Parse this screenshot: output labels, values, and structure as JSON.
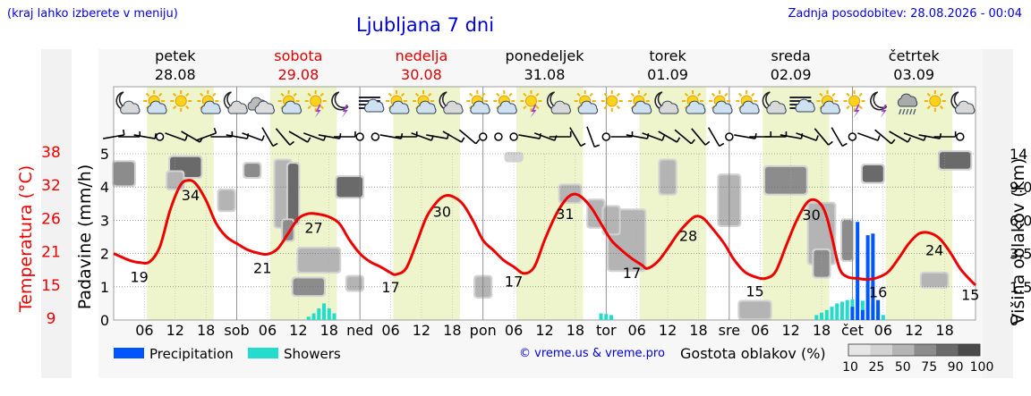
{
  "header": {
    "hint": "(kraj lahko izberete v meniju)",
    "title": "Ljubljana 7 dni",
    "updated": "Zadnja posodobitev: 28.08.2026 - 00:04"
  },
  "footer": {
    "copyright": "© vreme.us & vreme.pro",
    "density_label": "Gostota oblakov (%)",
    "density_ticks": [
      "10",
      "25",
      "50",
      "75",
      "90",
      "100"
    ]
  },
  "colors": {
    "temperature": "#ee0000",
    "precipitation": "#0055ff",
    "showers": "#22ddcc",
    "daylight": "#eef5cc",
    "night": "#ffffff",
    "weekend_label": "#dd0000",
    "link_blue": "#0000dd"
  },
  "chart_data": {
    "type": "line",
    "days": [
      {
        "name": "petek",
        "date": "28.08",
        "short": "",
        "weekend": false
      },
      {
        "name": "sobota",
        "date": "29.08",
        "short": "sob",
        "weekend": true
      },
      {
        "name": "nedelja",
        "date": "30.08",
        "short": "ned",
        "weekend": true
      },
      {
        "name": "ponedeljek",
        "date": "31.08",
        "short": "pon",
        "weekend": false
      },
      {
        "name": "torek",
        "date": "01.09",
        "short": "tor",
        "weekend": false
      },
      {
        "name": "sreda",
        "date": "02.09",
        "short": "sre",
        "weekend": false
      },
      {
        "name": "četrtek",
        "date": "03.09",
        "short": "čet",
        "weekend": false
      }
    ],
    "hour_ticks": [
      "06",
      "12",
      "18"
    ],
    "daylight_hours": [
      6.5,
      19.5
    ],
    "x_range_hours": [
      0,
      168
    ],
    "left_axis": {
      "label": "Padavine (mm/h)",
      "range": [
        0,
        5
      ],
      "ticks": [
        "0",
        "1",
        "2",
        "3",
        "4",
        "5"
      ]
    },
    "temp_axis": {
      "label": "Temperatura (°C)",
      "ticks": [
        "9",
        "15",
        "21",
        "26",
        "32",
        "38"
      ]
    },
    "right_axis": {
      "label": "Višina oblakov (km)",
      "ticks": [
        "0",
        "1.5",
        "3.5",
        "6.0",
        "9.0",
        "14"
      ]
    },
    "temperature": {
      "name": "Temperatura",
      "points": [
        [
          0,
          2.0
        ],
        [
          3,
          1.8
        ],
        [
          5,
          1.73
        ],
        [
          7,
          1.75
        ],
        [
          9,
          2.2
        ],
        [
          11,
          3.3
        ],
        [
          13,
          4.05
        ],
        [
          14.5,
          4.2
        ],
        [
          16,
          4.1
        ],
        [
          18,
          3.6
        ],
        [
          20,
          2.9
        ],
        [
          22,
          2.5
        ],
        [
          24,
          2.3
        ],
        [
          26,
          2.12
        ],
        [
          28,
          2.02
        ],
        [
          30,
          1.98
        ],
        [
          32,
          2.15
        ],
        [
          34,
          2.6
        ],
        [
          36,
          3.05
        ],
        [
          38,
          3.2
        ],
        [
          40,
          3.18
        ],
        [
          42,
          3.1
        ],
        [
          44,
          2.9
        ],
        [
          46,
          2.4
        ],
        [
          48,
          2.0
        ],
        [
          50,
          1.75
        ],
        [
          52,
          1.6
        ],
        [
          54,
          1.42
        ],
        [
          55,
          1.37
        ],
        [
          57,
          1.55
        ],
        [
          59,
          2.3
        ],
        [
          61,
          3.1
        ],
        [
          63,
          3.55
        ],
        [
          64.5,
          3.73
        ],
        [
          66,
          3.72
        ],
        [
          68,
          3.5
        ],
        [
          70,
          3.0
        ],
        [
          72,
          2.4
        ],
        [
          74,
          2.1
        ],
        [
          76,
          1.8
        ],
        [
          78,
          1.6
        ],
        [
          80,
          1.4
        ],
        [
          82,
          1.6
        ],
        [
          84,
          2.4
        ],
        [
          86,
          3.1
        ],
        [
          88,
          3.6
        ],
        [
          89.5,
          3.78
        ],
        [
          91,
          3.72
        ],
        [
          93,
          3.4
        ],
        [
          95,
          2.9
        ],
        [
          97,
          2.4
        ],
        [
          99,
          2.1
        ],
        [
          101,
          1.85
        ],
        [
          103,
          1.65
        ],
        [
          104,
          1.55
        ],
        [
          106,
          1.75
        ],
        [
          108,
          2.15
        ],
        [
          110,
          2.6
        ],
        [
          112,
          2.95
        ],
        [
          113.5,
          3.12
        ],
        [
          115,
          3.05
        ],
        [
          117,
          2.7
        ],
        [
          119,
          2.3
        ],
        [
          121,
          1.8
        ],
        [
          123,
          1.45
        ],
        [
          125,
          1.3
        ],
        [
          127,
          1.25
        ],
        [
          129,
          1.45
        ],
        [
          131,
          2.2
        ],
        [
          133,
          2.95
        ],
        [
          135,
          3.5
        ],
        [
          136.5,
          3.62
        ],
        [
          138,
          3.45
        ],
        [
          139,
          3.1
        ],
        [
          140,
          2.5
        ],
        [
          141.5,
          1.55
        ],
        [
          143,
          1.3
        ],
        [
          145,
          1.25
        ],
        [
          147,
          1.22
        ],
        [
          149,
          1.28
        ],
        [
          151,
          1.45
        ],
        [
          153,
          1.85
        ],
        [
          155,
          2.3
        ],
        [
          157,
          2.6
        ],
        [
          159,
          2.62
        ],
        [
          161,
          2.45
        ],
        [
          163,
          2.05
        ],
        [
          165,
          1.55
        ],
        [
          167,
          1.2
        ],
        [
          168,
          1.05
        ]
      ]
    },
    "temperature_labels": [
      {
        "hour": 5,
        "value": "19"
      },
      {
        "hour": 15,
        "value": "34"
      },
      {
        "hour": 29,
        "value": "21"
      },
      {
        "hour": 39,
        "value": "27"
      },
      {
        "hour": 54,
        "value": "17"
      },
      {
        "hour": 64,
        "value": "30"
      },
      {
        "hour": 78,
        "value": "17"
      },
      {
        "hour": 88,
        "value": "31"
      },
      {
        "hour": 101,
        "value": "17"
      },
      {
        "hour": 112,
        "value": "28"
      },
      {
        "hour": 125,
        "value": "15"
      },
      {
        "hour": 136,
        "value": "30"
      },
      {
        "hour": 149,
        "value": "16"
      },
      {
        "hour": 160,
        "value": "24"
      },
      {
        "hour": 167,
        "value": "15"
      }
    ],
    "showers": [
      [
        38,
        0.1
      ],
      [
        39,
        0.2
      ],
      [
        40,
        0.35
      ],
      [
        41,
        0.5
      ],
      [
        42,
        0.35
      ],
      [
        43,
        0.2
      ],
      [
        95,
        0.2
      ],
      [
        96,
        0.18
      ],
      [
        97,
        0.15
      ],
      [
        137,
        0.15
      ],
      [
        138,
        0.22
      ],
      [
        139,
        0.3
      ],
      [
        140,
        0.4
      ],
      [
        141,
        0.5
      ],
      [
        142,
        0.55
      ],
      [
        143,
        0.6
      ],
      [
        144,
        0.62
      ],
      [
        145,
        0.62
      ],
      [
        146,
        0.58
      ],
      [
        147,
        0.55
      ],
      [
        148,
        0.45
      ],
      [
        149,
        0.3
      ],
      [
        150,
        0.15
      ]
    ],
    "precipitation": [
      [
        144,
        0.4
      ],
      [
        145,
        2.95
      ],
      [
        146,
        0.3
      ],
      [
        147,
        2.55
      ],
      [
        148,
        2.6
      ],
      [
        149,
        0.6
      ]
    ],
    "cloud_patches": [
      {
        "hour": 2,
        "y": 4.4,
        "w": 4,
        "h": 0.7,
        "density": 75
      },
      {
        "hour": 14,
        "y": 4.6,
        "w": 6,
        "h": 0.6,
        "density": 90
      },
      {
        "hour": 12,
        "y": 4.2,
        "w": 3,
        "h": 0.5,
        "density": 50
      },
      {
        "hour": 22,
        "y": 3.6,
        "w": 3,
        "h": 0.6,
        "density": 50
      },
      {
        "hour": 27,
        "y": 4.5,
        "w": 3,
        "h": 0.4,
        "density": 75
      },
      {
        "hour": 33,
        "y": 3.8,
        "w": 3,
        "h": 2.0,
        "density": 50
      },
      {
        "hour": 35,
        "y": 3.8,
        "w": 2,
        "h": 1.8,
        "density": 90
      },
      {
        "hour": 34,
        "y": 2.7,
        "w": 2,
        "h": 0.6,
        "density": 75
      },
      {
        "hour": 40,
        "y": 1.8,
        "w": 8,
        "h": 0.7,
        "density": 50
      },
      {
        "hour": 38,
        "y": 1.0,
        "w": 6,
        "h": 0.5,
        "density": 75
      },
      {
        "hour": 46,
        "y": 4.0,
        "w": 5,
        "h": 0.6,
        "density": 90
      },
      {
        "hour": 47,
        "y": 1.1,
        "w": 3,
        "h": 0.4,
        "density": 50
      },
      {
        "hour": 72,
        "y": 1.0,
        "w": 3,
        "h": 0.6,
        "density": 50
      },
      {
        "hour": 78,
        "y": 4.9,
        "w": 3,
        "h": 0.2,
        "density": 25
      },
      {
        "hour": 89,
        "y": 3.8,
        "w": 4,
        "h": 0.5,
        "density": 50
      },
      {
        "hour": 94,
        "y": 3.2,
        "w": 3,
        "h": 0.8,
        "density": 50
      },
      {
        "hour": 100,
        "y": 2.4,
        "w": 7,
        "h": 1.8,
        "density": 50
      },
      {
        "hour": 97,
        "y": 3.0,
        "w": 3,
        "h": 0.8,
        "density": 50
      },
      {
        "hour": 108,
        "y": 4.3,
        "w": 3,
        "h": 1.0,
        "density": 50
      },
      {
        "hour": 120,
        "y": 3.6,
        "w": 4,
        "h": 1.5,
        "density": 50
      },
      {
        "hour": 125,
        "y": 0.3,
        "w": 6,
        "h": 0.5,
        "density": 50
      },
      {
        "hour": 131,
        "y": 4.2,
        "w": 8,
        "h": 0.8,
        "density": 75
      },
      {
        "hour": 138,
        "y": 2.6,
        "w": 5,
        "h": 1.8,
        "density": 50
      },
      {
        "hour": 138,
        "y": 1.7,
        "w": 3,
        "h": 0.8,
        "density": 75
      },
      {
        "hour": 143,
        "y": 2.4,
        "w": 2,
        "h": 1.2,
        "density": 75
      },
      {
        "hour": 148,
        "y": 4.4,
        "w": 4,
        "h": 0.5,
        "density": 90
      },
      {
        "hour": 160,
        "y": 1.2,
        "w": 5,
        "h": 0.4,
        "density": 50
      },
      {
        "hour": 164,
        "y": 4.8,
        "w": 6,
        "h": 0.5,
        "density": 90
      }
    ],
    "weather_icons": [
      "moon-cloud",
      "sun-cloud",
      "sun",
      "sun-cloud",
      "moon-cloud",
      "cloud",
      "sun-cloud",
      "sun-storm",
      "moon-storm",
      "fog",
      "sun-cloud",
      "sun-cloud",
      "moon-cloud",
      "sun-cloud",
      "sun-cloud",
      "sun-storm",
      "moon-cloud",
      "sun-cloud",
      "sun",
      "sun-cloud",
      "moon-cloud",
      "sun-cloud",
      "sun-cloud",
      "sun-cloud",
      "moon-cloud",
      "fog",
      "sun-cloud",
      "sun-storm",
      "moon-storm",
      "rain-cloud",
      "sun",
      "moon-cloud"
    ],
    "wind": [
      {
        "hour": 0,
        "dir": 260,
        "calm": false
      },
      {
        "hour": 3,
        "dir": 270,
        "calm": false
      },
      {
        "hour": 6,
        "dir": 280,
        "calm": false
      },
      {
        "hour": 9,
        "dir": 0,
        "calm": true
      },
      {
        "hour": 12,
        "dir": 290,
        "calm": false
      },
      {
        "hour": 15,
        "dir": 300,
        "calm": false
      },
      {
        "hour": 18,
        "dir": 250,
        "calm": false
      },
      {
        "hour": 21,
        "dir": 270,
        "calm": false
      },
      {
        "hour": 24,
        "dir": 280,
        "calm": false
      },
      {
        "hour": 27,
        "dir": 290,
        "calm": false
      },
      {
        "hour": 30,
        "dir": 330,
        "calm": false
      },
      {
        "hour": 33,
        "dir": 320,
        "calm": false
      },
      {
        "hour": 36,
        "dir": 300,
        "calm": false
      },
      {
        "hour": 39,
        "dir": 290,
        "calm": false
      },
      {
        "hour": 42,
        "dir": 280,
        "calm": false
      },
      {
        "hour": 45,
        "dir": 270,
        "calm": false
      },
      {
        "hour": 48,
        "dir": 0,
        "calm": true
      },
      {
        "hour": 51,
        "dir": 0,
        "calm": true
      },
      {
        "hour": 54,
        "dir": 280,
        "calm": false
      },
      {
        "hour": 57,
        "dir": 270,
        "calm": false
      },
      {
        "hour": 60,
        "dir": 290,
        "calm": false
      },
      {
        "hour": 63,
        "dir": 280,
        "calm": false
      },
      {
        "hour": 66,
        "dir": 300,
        "calm": false
      },
      {
        "hour": 69,
        "dir": 310,
        "calm": false
      },
      {
        "hour": 72,
        "dir": 0,
        "calm": true
      },
      {
        "hour": 75,
        "dir": 0,
        "calm": true
      },
      {
        "hour": 78,
        "dir": 0,
        "calm": true
      },
      {
        "hour": 81,
        "dir": 280,
        "calm": false
      },
      {
        "hour": 84,
        "dir": 290,
        "calm": false
      },
      {
        "hour": 87,
        "dir": 270,
        "calm": false
      },
      {
        "hour": 90,
        "dir": 330,
        "calm": false
      },
      {
        "hour": 93,
        "dir": 340,
        "calm": false
      },
      {
        "hour": 96,
        "dir": 0,
        "calm": true
      },
      {
        "hour": 99,
        "dir": 270,
        "calm": false
      },
      {
        "hour": 102,
        "dir": 280,
        "calm": false
      },
      {
        "hour": 105,
        "dir": 290,
        "calm": false
      },
      {
        "hour": 108,
        "dir": 300,
        "calm": false
      },
      {
        "hour": 111,
        "dir": 310,
        "calm": false
      },
      {
        "hour": 114,
        "dir": 320,
        "calm": false
      },
      {
        "hour": 117,
        "dir": 330,
        "calm": false
      },
      {
        "hour": 120,
        "dir": 0,
        "calm": true
      },
      {
        "hour": 123,
        "dir": 280,
        "calm": false
      },
      {
        "hour": 126,
        "dir": 270,
        "calm": false
      },
      {
        "hour": 129,
        "dir": 270,
        "calm": false
      },
      {
        "hour": 132,
        "dir": 280,
        "calm": false
      },
      {
        "hour": 135,
        "dir": 290,
        "calm": false
      },
      {
        "hour": 138,
        "dir": 320,
        "calm": false
      },
      {
        "hour": 141,
        "dir": 330,
        "calm": false
      },
      {
        "hour": 144,
        "dir": 0,
        "calm": true
      },
      {
        "hour": 147,
        "dir": 290,
        "calm": false
      },
      {
        "hour": 150,
        "dir": 310,
        "calm": false
      },
      {
        "hour": 153,
        "dir": 300,
        "calm": false
      },
      {
        "hour": 156,
        "dir": 290,
        "calm": false
      },
      {
        "hour": 159,
        "dir": 280,
        "calm": false
      },
      {
        "hour": 162,
        "dir": 270,
        "calm": false
      },
      {
        "hour": 165,
        "dir": 0,
        "calm": true
      }
    ],
    "legend": [
      {
        "label": "Precipitation",
        "color": "#0055ff"
      },
      {
        "label": "Showers",
        "color": "#22ddcc"
      }
    ]
  }
}
